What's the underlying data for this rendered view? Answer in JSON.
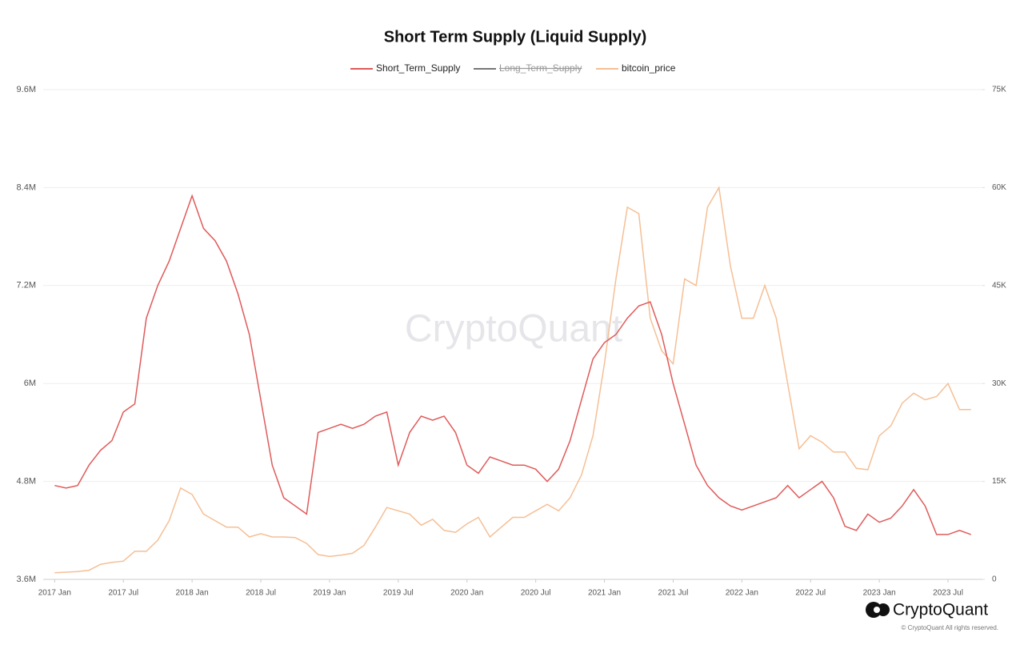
{
  "chart_data": {
    "type": "line",
    "title": "Short Term Supply (Liquid Supply)",
    "watermark": "CryptoQuant",
    "brand": "CryptoQuant",
    "copyright": "© CryptoQuant All rights reserved.",
    "grid": true,
    "legend": "top",
    "x": [
      "2017-01",
      "2017-02",
      "2017-03",
      "2017-04",
      "2017-05",
      "2017-06",
      "2017-07",
      "2017-08",
      "2017-09",
      "2017-10",
      "2017-11",
      "2017-12",
      "2018-01",
      "2018-02",
      "2018-03",
      "2018-04",
      "2018-05",
      "2018-06",
      "2018-07",
      "2018-08",
      "2018-09",
      "2018-10",
      "2018-11",
      "2018-12",
      "2019-01",
      "2019-02",
      "2019-03",
      "2019-04",
      "2019-05",
      "2019-06",
      "2019-07",
      "2019-08",
      "2019-09",
      "2019-10",
      "2019-11",
      "2019-12",
      "2020-01",
      "2020-02",
      "2020-03",
      "2020-04",
      "2020-05",
      "2020-06",
      "2020-07",
      "2020-08",
      "2020-09",
      "2020-10",
      "2020-11",
      "2020-12",
      "2021-01",
      "2021-02",
      "2021-03",
      "2021-04",
      "2021-05",
      "2021-06",
      "2021-07",
      "2021-08",
      "2021-09",
      "2021-10",
      "2021-11",
      "2021-12",
      "2022-01",
      "2022-02",
      "2022-03",
      "2022-04",
      "2022-05",
      "2022-06",
      "2022-07",
      "2022-08",
      "2022-09",
      "2022-10",
      "2022-11",
      "2022-12",
      "2023-01",
      "2023-02",
      "2023-03",
      "2023-04",
      "2023-05",
      "2023-06",
      "2023-07",
      "2023-08",
      "2023-09"
    ],
    "xlim": [
      "2016-12",
      "2023-10"
    ],
    "xticks": [
      {
        "value": "2017-01",
        "label": "2017 Jan"
      },
      {
        "value": "2017-07",
        "label": "2017 Jul"
      },
      {
        "value": "2018-01",
        "label": "2018 Jan"
      },
      {
        "value": "2018-07",
        "label": "2018 Jul"
      },
      {
        "value": "2019-01",
        "label": "2019 Jan"
      },
      {
        "value": "2019-07",
        "label": "2019 Jul"
      },
      {
        "value": "2020-01",
        "label": "2020 Jan"
      },
      {
        "value": "2020-07",
        "label": "2020 Jul"
      },
      {
        "value": "2021-01",
        "label": "2021 Jan"
      },
      {
        "value": "2021-07",
        "label": "2021 Jul"
      },
      {
        "value": "2022-01",
        "label": "2022 Jan"
      },
      {
        "value": "2022-07",
        "label": "2022 Jul"
      },
      {
        "value": "2023-01",
        "label": "2023 Jan"
      },
      {
        "value": "2023-07",
        "label": "2023 Jul"
      }
    ],
    "ylim": [
      3600000,
      9600000
    ],
    "yticks": [
      {
        "value": 3600000,
        "label": "3.6M"
      },
      {
        "value": 4800000,
        "label": "4.8M"
      },
      {
        "value": 6000000,
        "label": "6M"
      },
      {
        "value": 7200000,
        "label": "7.2M"
      },
      {
        "value": 8400000,
        "label": "8.4M"
      },
      {
        "value": 9600000,
        "label": "9.6M"
      }
    ],
    "y2lim": [
      0,
      75000
    ],
    "y2ticks": [
      0,
      {
        "value": 15000,
        "label": "15K"
      },
      {
        "value": 30000,
        "label": "30K"
      },
      {
        "value": 45000,
        "label": "45K"
      },
      {
        "value": 60000,
        "label": "60K"
      },
      {
        "value": 75000,
        "label": "75K"
      }
    ],
    "series": [
      {
        "name": "Short_Term_Supply",
        "color": "#e05a5a",
        "axis": "y",
        "values": [
          4750000,
          4720000,
          4750000,
          5000000,
          5180000,
          5300000,
          5650000,
          5750000,
          6800000,
          7200000,
          7500000,
          7900000,
          8300000,
          7900000,
          7750000,
          7500000,
          7100000,
          6600000,
          5800000,
          5000000,
          4600000,
          4500000,
          4400000,
          5400000,
          5450000,
          5500000,
          5450000,
          5500000,
          5600000,
          5650000,
          5000000,
          5400000,
          5600000,
          5550000,
          5600000,
          5400000,
          5000000,
          4900000,
          5100000,
          5050000,
          5000000,
          5000000,
          4950000,
          4800000,
          4950000,
          5300000,
          5800000,
          6300000,
          6500000,
          6600000,
          6800000,
          6950000,
          7000000,
          6600000,
          6000000,
          5500000,
          5000000,
          4750000,
          4600000,
          4500000,
          4450000,
          4500000,
          4550000,
          4600000,
          4750000,
          4600000,
          4700000,
          4800000,
          4600000,
          4250000,
          4200000,
          4400000,
          4300000,
          4350000,
          4500000,
          4700000,
          4500000,
          4150000,
          4150000,
          4200000,
          4150000
        ]
      },
      {
        "name": "Long_Term_Supply",
        "color": "#777777",
        "hidden": true
      },
      {
        "name": "bitcoin_price",
        "color": "#f5bf95",
        "axis": "y2",
        "values": [
          1000,
          1100,
          1200,
          1400,
          2300,
          2600,
          2800,
          4300,
          4300,
          6000,
          9000,
          14000,
          13000,
          10000,
          9000,
          8000,
          8000,
          6500,
          7000,
          6500,
          6500,
          6400,
          5500,
          3800,
          3500,
          3700,
          4000,
          5200,
          8000,
          11000,
          10500,
          10000,
          8300,
          9200,
          7500,
          7200,
          8500,
          9500,
          6500,
          8000,
          9500,
          9500,
          10500,
          11500,
          10500,
          12500,
          16000,
          22000,
          33000,
          46000,
          57000,
          56000,
          40000,
          35000,
          33000,
          46000,
          45000,
          57000,
          60000,
          48000,
          40000,
          40000,
          45000,
          40000,
          30000,
          20000,
          22000,
          21000,
          19500,
          19500,
          17000,
          16800,
          22000,
          23500,
          27000,
          28500,
          27500,
          28000,
          30000,
          26000,
          26000
        ]
      }
    ]
  }
}
